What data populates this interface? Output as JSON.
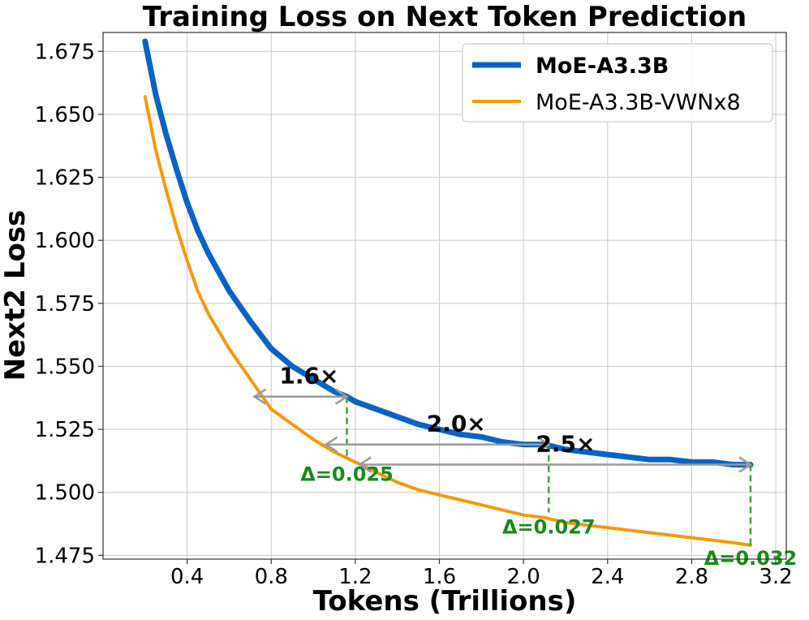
{
  "chart_data": {
    "type": "line",
    "title": "Training Loss on Next Token Prediction",
    "xlabel": "Tokens (Trillions)",
    "ylabel": "Next2 Loss",
    "xlim": [
      0.0,
      3.25
    ],
    "ylim": [
      1.4735,
      1.6825
    ],
    "xticks": [
      "0.4",
      "0.8",
      "1.2",
      "1.6",
      "2.0",
      "2.4",
      "2.8",
      "3.2"
    ],
    "yticks": [
      "1.475",
      "1.500",
      "1.525",
      "1.550",
      "1.575",
      "1.600",
      "1.625",
      "1.650",
      "1.675"
    ],
    "grid": true,
    "legend_position": "top-right",
    "series": [
      {
        "name": "MoE-A3.3B",
        "color": "#0a63c4",
        "bold": true,
        "x": [
          0.2,
          0.25,
          0.3,
          0.35,
          0.4,
          0.45,
          0.5,
          0.6,
          0.7,
          0.8,
          0.9,
          1.0,
          1.1,
          1.16,
          1.2,
          1.3,
          1.4,
          1.5,
          1.6,
          1.7,
          1.8,
          1.9,
          2.0,
          2.1,
          2.2,
          2.3,
          2.4,
          2.5,
          2.6,
          2.7,
          2.8,
          2.9,
          3.0,
          3.08
        ],
        "y": [
          1.679,
          1.658,
          1.642,
          1.628,
          1.615,
          1.604,
          1.595,
          1.58,
          1.568,
          1.557,
          1.55,
          1.545,
          1.54,
          1.538,
          1.536,
          1.533,
          1.53,
          1.527,
          1.525,
          1.523,
          1.522,
          1.52,
          1.519,
          1.519,
          1.517,
          1.516,
          1.515,
          1.514,
          1.513,
          1.513,
          1.512,
          1.512,
          1.511,
          1.511
        ]
      },
      {
        "name": "MoE-A3.3B-VWNx8",
        "color": "#f29a0c",
        "bold": false,
        "x": [
          0.2,
          0.25,
          0.3,
          0.35,
          0.4,
          0.45,
          0.5,
          0.6,
          0.7,
          0.8,
          0.9,
          1.0,
          1.1,
          1.2,
          1.3,
          1.4,
          1.5,
          1.6,
          1.7,
          1.8,
          1.9,
          2.0,
          2.1,
          2.2,
          2.3,
          2.4,
          2.5,
          2.6,
          2.7,
          2.8,
          2.9,
          3.0,
          3.08
        ],
        "y": [
          1.657,
          1.636,
          1.62,
          1.605,
          1.592,
          1.58,
          1.571,
          1.557,
          1.545,
          1.533,
          1.527,
          1.521,
          1.516,
          1.512,
          1.508,
          1.504,
          1.501,
          1.499,
          1.497,
          1.495,
          1.493,
          1.491,
          1.49,
          1.488,
          1.487,
          1.486,
          1.485,
          1.484,
          1.483,
          1.482,
          1.481,
          1.48,
          1.479
        ]
      }
    ],
    "annotations": {
      "speedups": [
        {
          "label": "1.6×",
          "y": 1.538,
          "x_from": 0.72,
          "x_to": 1.16
        },
        {
          "label": "2.0×",
          "y": 1.519,
          "x_from": 1.06,
          "x_to": 2.12
        },
        {
          "label": "2.5×",
          "y": 1.511,
          "x_from": 1.22,
          "x_to": 3.08
        }
      ],
      "deltas": [
        {
          "label": "Δ=0.025",
          "x": 1.16,
          "y_top": 1.538,
          "y_bottom": 1.513
        },
        {
          "label": "Δ=0.027",
          "x": 2.12,
          "y_top": 1.519,
          "y_bottom": 1.492
        },
        {
          "label": "Δ=0.032",
          "x": 3.08,
          "y_top": 1.511,
          "y_bottom": 1.479
        }
      ]
    }
  }
}
